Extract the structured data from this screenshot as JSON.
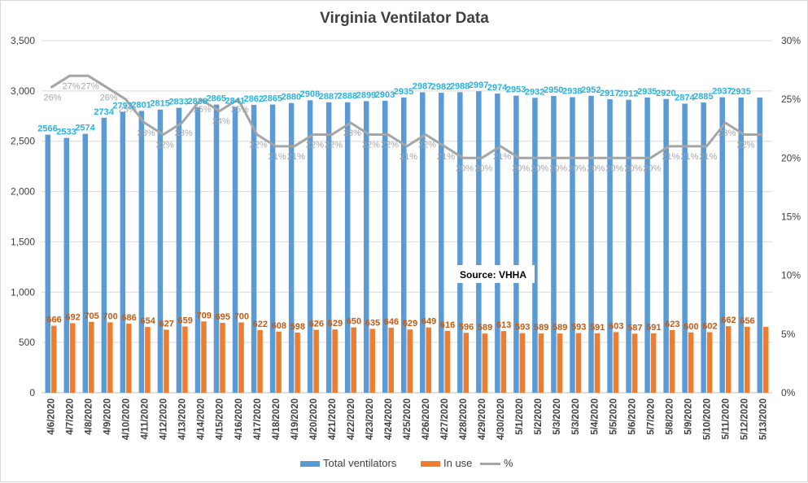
{
  "chart_data": {
    "type": "bar",
    "title": "Virginia Ventilator Data",
    "annotation": "Source: VHHA",
    "categories": [
      "4/6/2020",
      "4/7/2020",
      "4/8/2020",
      "4/9/2020",
      "4/10/2020",
      "4/11/2020",
      "4/12/2020",
      "4/13/2020",
      "4/14/2020",
      "4/15/2020",
      "4/16/2020",
      "4/17/2020",
      "4/18/2020",
      "4/19/2020",
      "4/20/2020",
      "4/21/2020",
      "4/22/2020",
      "4/23/2020",
      "4/24/2020",
      "4/25/2020",
      "4/26/2020",
      "4/27/2020",
      "4/28/2020",
      "4/29/2020",
      "4/30/2020",
      "5/1/2020",
      "5/2/2020",
      "5/3/2020",
      "5/3/2020",
      "5/4/2020",
      "5/5/2020",
      "5/6/2020",
      "5/7/2020",
      "5/8/2020",
      "5/9/2020",
      "5/10/2020",
      "5/11/2020",
      "5/12/2020",
      "5/13/2020"
    ],
    "series": [
      {
        "name": "Total ventilators",
        "type": "bar",
        "axis": "left",
        "color": "#5B9BD5",
        "values": [
          2566,
          2533,
          2574,
          2734,
          2792,
          2801,
          2815,
          2833,
          2838,
          2865,
          2841,
          2862,
          2865,
          2880,
          2908,
          2887,
          2888,
          2899,
          2903,
          2935,
          2987,
          2982,
          2988,
          2997,
          2974,
          2953,
          2932,
          2950,
          2938,
          2952,
          2917,
          2912,
          2935,
          2920,
          2874,
          2885,
          2937,
          2935,
          2935
        ],
        "labels": [
          "2566",
          "2533",
          "2574",
          "2734",
          "2792",
          "2801",
          "2815",
          "2833",
          "2838",
          "2865",
          "2841",
          "2862",
          "2865",
          "2880",
          "2908",
          "2887",
          "2888",
          "2899",
          "2903",
          "2935",
          "2987",
          "2982",
          "2988",
          "2997",
          "2974",
          "2953",
          "2932",
          "2950",
          "2938",
          "2952",
          "2917",
          "2912",
          "2935",
          "2920",
          "2874",
          "2885",
          "2937",
          "2935",
          ""
        ]
      },
      {
        "name": "In use",
        "type": "bar",
        "axis": "left",
        "color": "#ED7D31",
        "values": [
          666,
          692,
          705,
          700,
          686,
          654,
          627,
          659,
          709,
          695,
          700,
          622,
          608,
          598,
          626,
          629,
          650,
          635,
          646,
          629,
          649,
          616,
          596,
          589,
          613,
          593,
          589,
          589,
          593,
          591,
          603,
          587,
          591,
          623,
          600,
          602,
          662,
          656,
          656
        ],
        "labels": [
          "666",
          "692",
          "705",
          "700",
          "686",
          "654",
          "627",
          "659",
          "709",
          "695",
          "700",
          "622",
          "608",
          "598",
          "626",
          "629",
          "650",
          "635",
          "646",
          "629",
          "649",
          "616",
          "596",
          "589",
          "613",
          "593",
          "589",
          "589",
          "593",
          "591",
          "603",
          "587",
          "591",
          "623",
          "600",
          "602",
          "662",
          "656",
          ""
        ]
      },
      {
        "name": "%",
        "type": "line",
        "axis": "right",
        "color": "#A5A5A5",
        "values": [
          26,
          27,
          27,
          26,
          25,
          23,
          22,
          23,
          25,
          24,
          25,
          22,
          21,
          21,
          22,
          22,
          23,
          22,
          22,
          21,
          22,
          21,
          20,
          20,
          21,
          20,
          20,
          20,
          20,
          20,
          20,
          20,
          20,
          21,
          21,
          21,
          23,
          22,
          22
        ],
        "labels": [
          "26%",
          "27%",
          "27%",
          "26%",
          "25%",
          "23%",
          "22%",
          "23%",
          "25%",
          "24%",
          "25%",
          "22%",
          "21%",
          "21%",
          "22%",
          "22%",
          "23%",
          "22%",
          "22%",
          "21%",
          "22%",
          "21%",
          "20%",
          "20%",
          "21%",
          "20%",
          "20%",
          "20%",
          "20%",
          "20%",
          "20%",
          "20%",
          "20%",
          "21%",
          "21%",
          "21%",
          "23%",
          "22%",
          ""
        ]
      }
    ],
    "y_left": {
      "min": 0,
      "max": 3500,
      "step": 500,
      "tick_labels": [
        "0",
        "500",
        "1,000",
        "1,500",
        "2,000",
        "2,500",
        "3,000",
        "3,500"
      ]
    },
    "y_right": {
      "min": 0,
      "max": 30,
      "step": 5,
      "tick_labels": [
        "0%",
        "5%",
        "10%",
        "15%",
        "20%",
        "25%",
        "30%"
      ]
    },
    "grid": true,
    "legend_position": "bottom"
  }
}
